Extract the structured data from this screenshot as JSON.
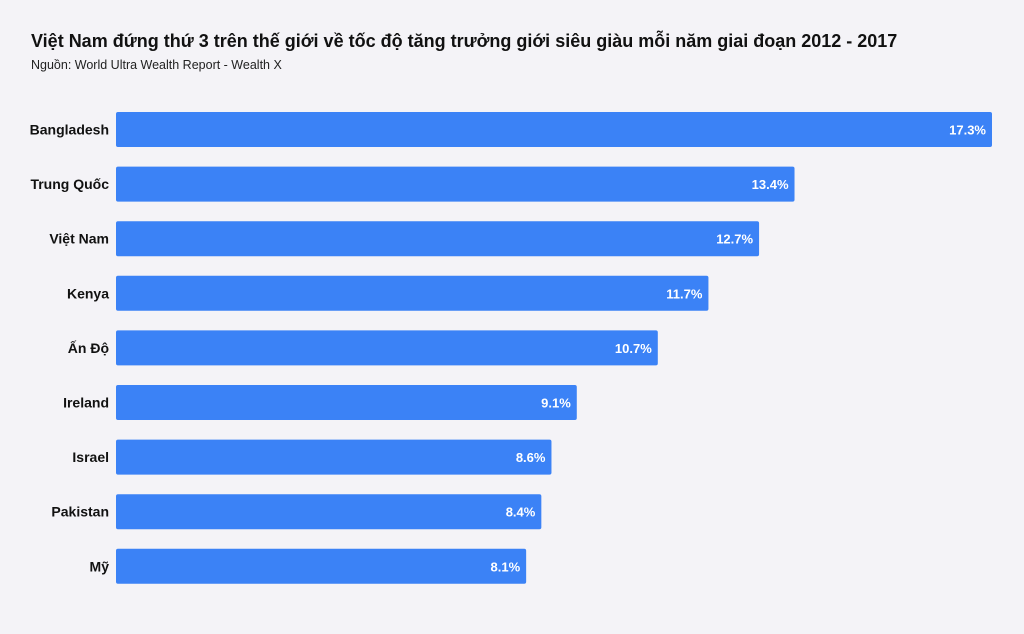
{
  "header": {
    "title": "Việt Nam đứng thứ 3 trên thế giới về tốc độ tăng trưởng giới siêu giàu mỗi năm giai đoạn 2012 - 2017",
    "source": "Nguồn: World Ultra Wealth Report - Wealth X"
  },
  "colors": {
    "background": "#f4f3f7",
    "bar": "#3b82f6"
  },
  "chart_data": {
    "type": "bar",
    "orientation": "horizontal",
    "title": "Việt Nam đứng thứ 3 trên thế giới về tốc độ tăng trưởng giới siêu giàu mỗi năm giai đoạn 2012 - 2017",
    "subtitle": "Nguồn: World Ultra Wealth Report - Wealth X",
    "categories": [
      "Bangladesh",
      "Trung Quốc",
      "Việt Nam",
      "Kenya",
      "Ấn Độ",
      "Ireland",
      "Israel",
      "Pakistan",
      "Mỹ"
    ],
    "values": [
      17.3,
      13.4,
      12.7,
      11.7,
      10.7,
      9.1,
      8.6,
      8.4,
      8.1
    ],
    "data_labels": [
      "17.3%",
      "13.4%",
      "12.7%",
      "11.7%",
      "10.7%",
      "9.1%",
      "8.6%",
      "8.4%",
      "8.1%"
    ],
    "xlim": [
      0,
      17.3
    ],
    "grid": false,
    "legend": "none"
  }
}
